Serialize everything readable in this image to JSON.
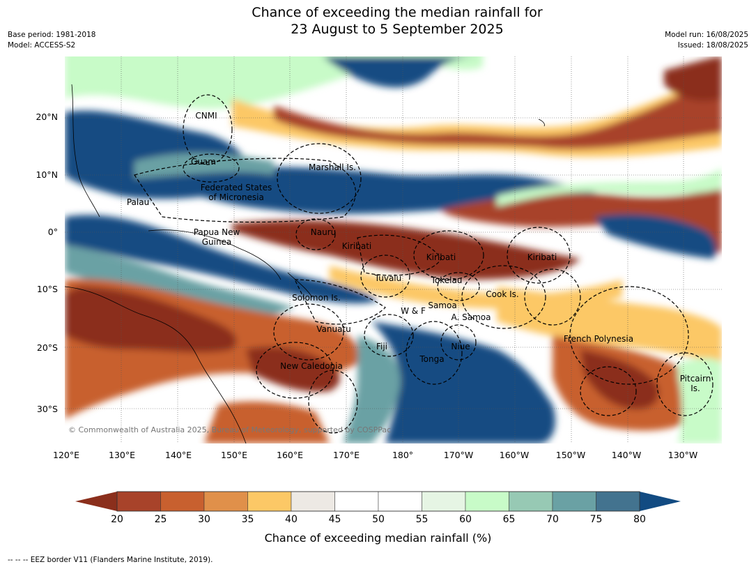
{
  "title_line1": "Chance of exceeding the median rainfall for",
  "title_line2": "23 August to 5 September 2025",
  "meta_left": [
    "Base period: 1981-2018",
    "Model: ACCESS-S2"
  ],
  "meta_right": [
    "Model run: 16/08/2025",
    "Issued: 18/08/2025"
  ],
  "lat_labels": [
    "20°N",
    "10°N",
    "0°",
    "10°S",
    "20°S",
    "30°S"
  ],
  "lon_labels": [
    "120°E",
    "130°E",
    "140°E",
    "150°E",
    "160°E",
    "170°E",
    "180°",
    "170°W",
    "160°W",
    "150°W",
    "140°W",
    "130°W"
  ],
  "regions": [
    {
      "id": "cnmi",
      "label": "CNMI"
    },
    {
      "id": "guam",
      "label": "Guam"
    },
    {
      "id": "marshall",
      "label": "Marshall Is."
    },
    {
      "id": "fsm",
      "label": "Federated States\nof Micronesia"
    },
    {
      "id": "palau",
      "label": "Palau"
    },
    {
      "id": "png",
      "label": "Papua New\nGuinea"
    },
    {
      "id": "nauru",
      "label": "Nauru"
    },
    {
      "id": "kiribati1",
      "label": "Kiribati"
    },
    {
      "id": "kiribati2",
      "label": "Kiribati"
    },
    {
      "id": "kiribati3",
      "label": "Kiribati"
    },
    {
      "id": "tuvalu",
      "label": "Tuvalu"
    },
    {
      "id": "tokelau",
      "label": "Tokelau"
    },
    {
      "id": "cook",
      "label": "Cook Is."
    },
    {
      "id": "solomon",
      "label": "Solomon Is."
    },
    {
      "id": "samoa",
      "label": "Samoa"
    },
    {
      "id": "wf",
      "label": "W & F"
    },
    {
      "id": "asamoa",
      "label": "A. Samoa"
    },
    {
      "id": "vanuatu",
      "label": "Vanuatu"
    },
    {
      "id": "fiji",
      "label": "Fiji"
    },
    {
      "id": "niue",
      "label": "Niue"
    },
    {
      "id": "tonga",
      "label": "Tonga"
    },
    {
      "id": "frpoly",
      "label": "French Polynesia"
    },
    {
      "id": "newcal",
      "label": "New Caledonia"
    },
    {
      "id": "pitcairn",
      "label": "Pitcairn\nIs."
    }
  ],
  "copyright": "© Commonwealth of Australia 2025, Bureau of Meteorology, supported by COSPPac",
  "colorbar": {
    "label": "Chance of exceeding median rainfall (%)",
    "ticks": [
      "20",
      "25",
      "30",
      "35",
      "40",
      "45",
      "50",
      "55",
      "60",
      "65",
      "70",
      "75",
      "80"
    ],
    "colors": {
      "under": "#8b2f1c",
      "bins": [
        "#a8432a",
        "#c8602f",
        "#e0904a",
        "#fcc866",
        "#ede9e4",
        "#ffffff",
        "#ffffff",
        "#e6f5e4",
        "#c8fbc8",
        "#97c9b4",
        "#6aa1a4",
        "#43738f"
      ],
      "over": "#124b82"
    }
  },
  "footnote": "--  --  -- EEZ border V11 (Flanders Marine Institute, 2019)."
}
